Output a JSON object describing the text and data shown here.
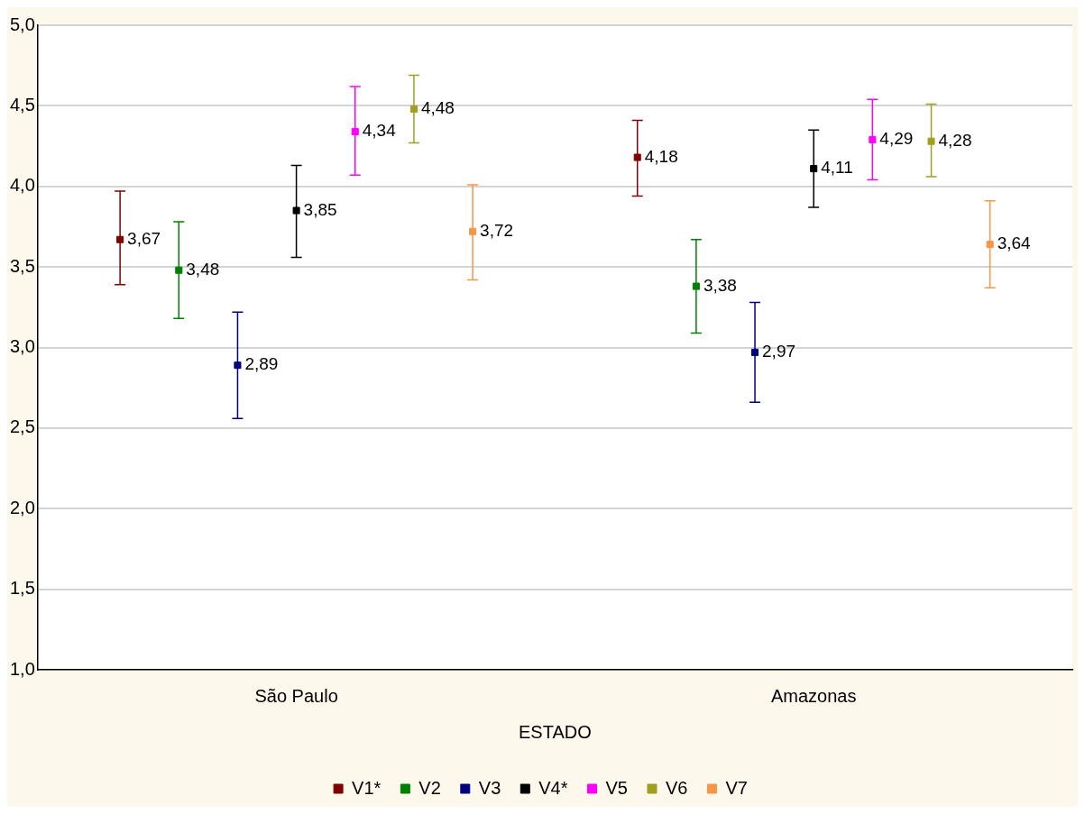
{
  "chart_data": {
    "type": "scatter",
    "xlabel": "ESTADO",
    "categories": [
      "São Paulo",
      "Amazonas"
    ],
    "ylim": [
      1,
      5
    ],
    "yticks": [
      {
        "value": 1,
        "label": "1,0"
      },
      {
        "value": 1.5,
        "label": "1,5"
      },
      {
        "value": 2,
        "label": "2,0"
      },
      {
        "value": 2.5,
        "label": "2,5"
      },
      {
        "value": 3,
        "label": "3,0"
      },
      {
        "value": 3.5,
        "label": "3,5"
      },
      {
        "value": 4,
        "label": "4,0"
      },
      {
        "value": 4.5,
        "label": "4,5"
      },
      {
        "value": 5,
        "label": "5,0"
      }
    ],
    "grid": "y",
    "legend": "bottom",
    "marker": "square",
    "series": [
      {
        "name": "V1*",
        "color": "#800000",
        "values": [
          3.67,
          4.18
        ],
        "value_labels": [
          "3,67",
          "4,18"
        ],
        "errors": [
          [
            3.39,
            3.97
          ],
          [
            3.94,
            4.41
          ]
        ]
      },
      {
        "name": "V2",
        "color": "#008000",
        "values": [
          3.48,
          3.38
        ],
        "value_labels": [
          "3,48",
          "3,38"
        ],
        "errors": [
          [
            3.18,
            3.78
          ],
          [
            3.09,
            3.67
          ]
        ]
      },
      {
        "name": "V3",
        "color": "#000080",
        "values": [
          2.89,
          2.97
        ],
        "value_labels": [
          "2,89",
          "2,97"
        ],
        "errors": [
          [
            2.56,
            3.22
          ],
          [
            2.66,
            3.28
          ]
        ]
      },
      {
        "name": "V4*",
        "color": "#000000",
        "values": [
          3.85,
          4.11
        ],
        "value_labels": [
          "3,85",
          "4,11"
        ],
        "errors": [
          [
            3.56,
            4.13
          ],
          [
            3.87,
            4.35
          ]
        ]
      },
      {
        "name": "V5",
        "color": "#ff00ff",
        "values": [
          4.34,
          4.29
        ],
        "value_labels": [
          "4,34",
          "4,29"
        ],
        "errors": [
          [
            4.07,
            4.62
          ],
          [
            4.04,
            4.54
          ]
        ]
      },
      {
        "name": "V6",
        "color": "#a0a020",
        "values": [
          4.48,
          4.28
        ],
        "value_labels": [
          "4,48",
          "4,28"
        ],
        "errors": [
          [
            4.27,
            4.69
          ],
          [
            4.06,
            4.51
          ]
        ]
      },
      {
        "name": "V7",
        "color": "#f79646",
        "values": [
          3.72,
          3.64
        ],
        "value_labels": [
          "3,72",
          "3,64"
        ],
        "errors": [
          [
            3.42,
            4.01
          ],
          [
            3.37,
            3.91
          ]
        ]
      }
    ]
  }
}
